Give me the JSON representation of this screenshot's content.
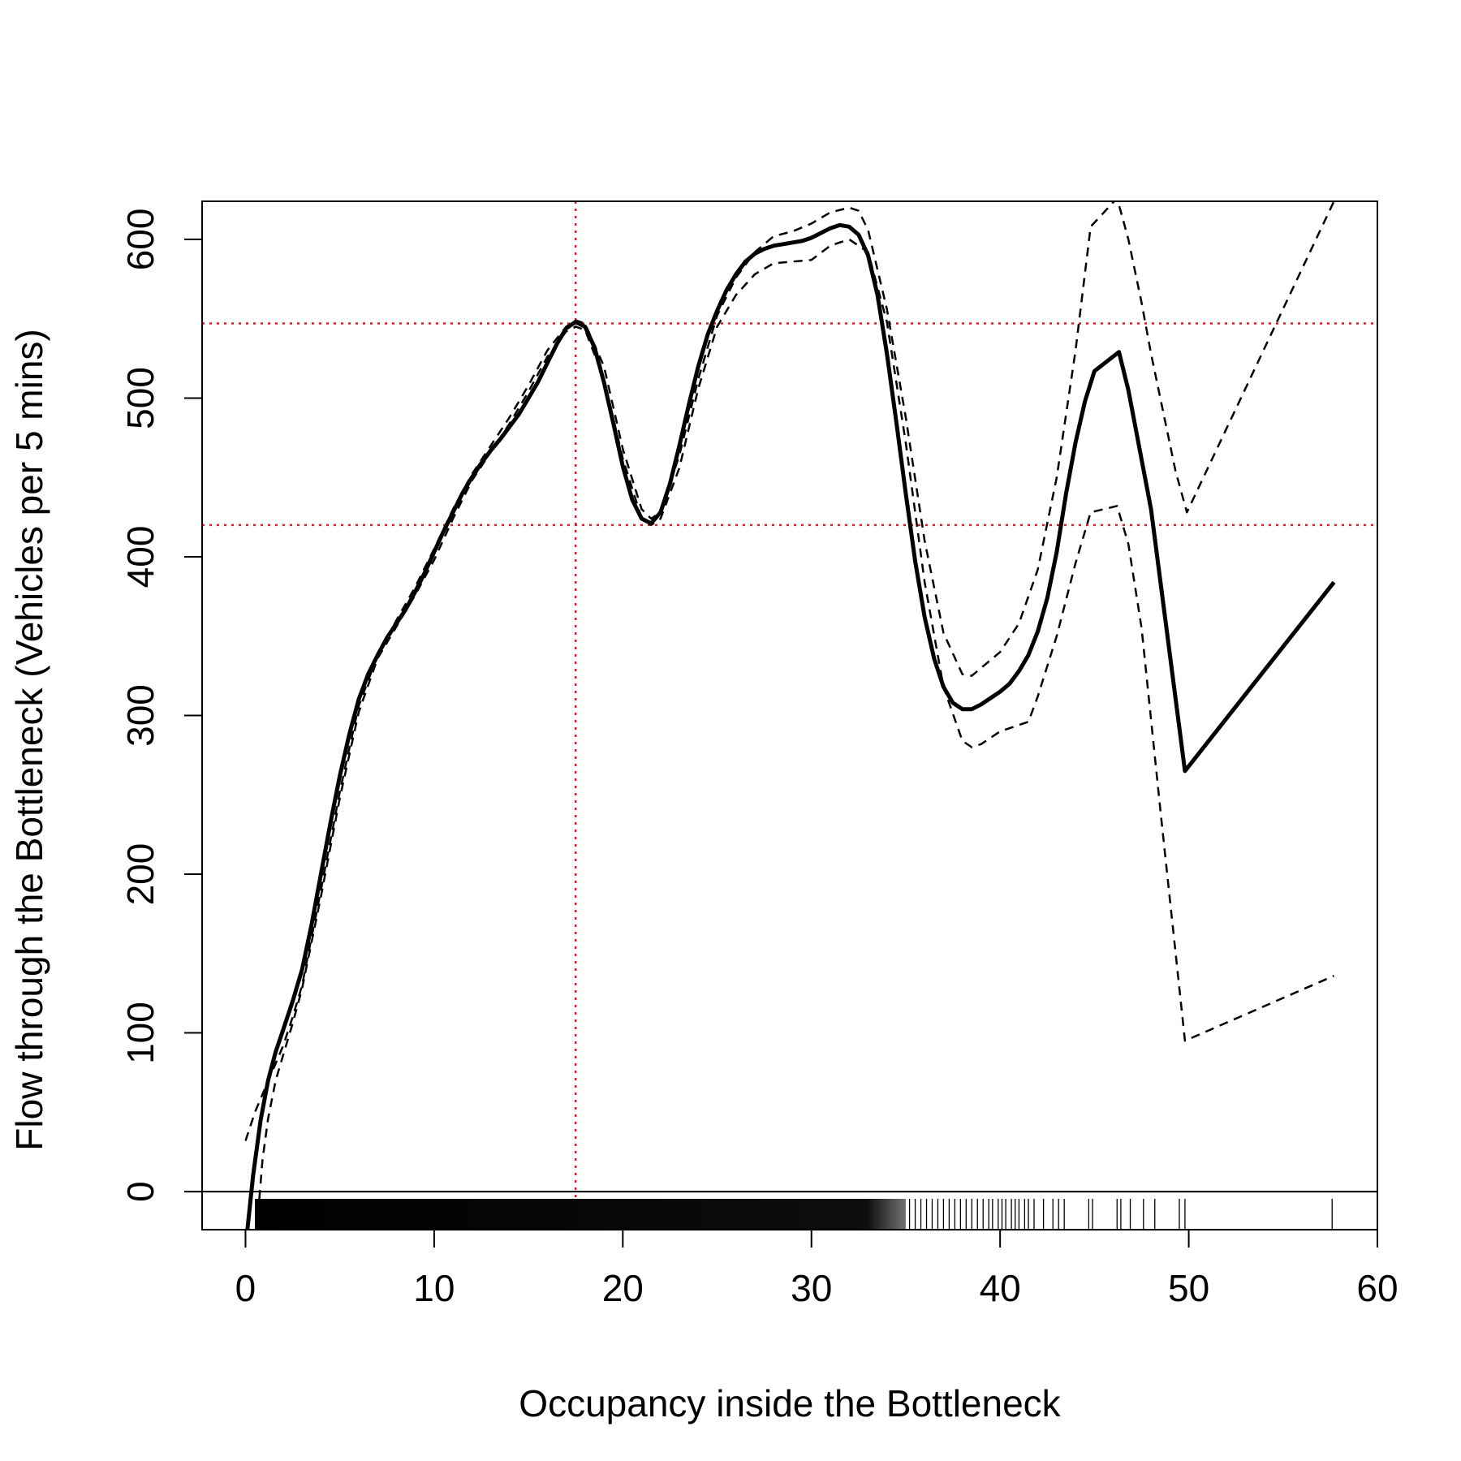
{
  "chart_data": {
    "type": "line",
    "title": "",
    "xlabel": "Occupancy inside the Bottleneck",
    "ylabel": "Flow through the Bottleneck (Vehicles per 5 mins)",
    "xlim": [
      -2.3,
      60
    ],
    "ylim": [
      -24,
      624
    ],
    "x_ticks": [
      0,
      10,
      20,
      30,
      40,
      50,
      60
    ],
    "y_ticks": [
      0,
      100,
      200,
      300,
      400,
      500,
      600
    ],
    "grid": false,
    "legend": "none",
    "colors": {
      "fit": "#000000",
      "band": "#000000",
      "reference": "#e41a1c"
    },
    "series": [
      {
        "role": "fit",
        "style": "solid",
        "x": [
          0.1,
          0.4,
          0.8,
          1.2,
          1.6,
          2.0,
          2.5,
          3.0,
          3.5,
          4.0,
          4.5,
          5.0,
          5.5,
          6.0,
          6.5,
          7.0,
          7.5,
          8.0,
          8.5,
          9.0,
          9.5,
          10.0,
          10.5,
          11.0,
          11.5,
          12.0,
          12.5,
          13.0,
          13.5,
          14.0,
          14.5,
          15.0,
          15.5,
          16.0,
          16.5,
          17.0,
          17.5,
          18.0,
          18.5,
          19.0,
          19.5,
          20.0,
          20.5,
          21.0,
          21.5,
          22.0,
          22.5,
          23.0,
          23.5,
          24.0,
          24.5,
          25.0,
          25.5,
          26.0,
          26.5,
          27.0,
          27.5,
          28.0,
          28.5,
          29.0,
          29.5,
          30.0,
          30.5,
          31.0,
          31.5,
          32.0,
          32.5,
          33.0,
          33.5,
          34.0,
          34.5,
          35.0,
          35.5,
          36.0,
          36.5,
          37.0,
          37.5,
          38.0,
          38.5,
          39.0,
          39.5,
          40.0,
          40.5,
          41.0,
          41.5,
          42.0,
          42.5,
          43.0,
          43.5,
          44.0,
          44.5,
          45.0,
          46.3,
          46.8,
          48.0,
          49.8,
          57.7
        ],
        "y": [
          -24,
          10,
          45,
          70,
          88,
          102,
          120,
          140,
          168,
          200,
          232,
          262,
          288,
          310,
          326,
          338,
          349,
          358,
          367,
          378,
          390,
          403,
          416,
          428,
          440,
          450,
          459,
          467,
          474,
          482,
          490,
          500,
          510,
          522,
          534,
          544,
          548,
          545,
          532,
          510,
          484,
          457,
          436,
          424,
          421,
          428,
          446,
          470,
          496,
          520,
          540,
          555,
          568,
          578,
          586,
          591,
          594,
          596,
          597,
          598,
          599,
          601,
          604,
          607,
          609,
          608,
          603,
          590,
          565,
          528,
          485,
          440,
          397,
          362,
          336,
          318,
          308,
          304,
          304,
          307,
          311,
          315,
          320,
          328,
          338,
          353,
          374,
          403,
          440,
          472,
          498,
          517,
          529,
          505,
          430,
          265,
          384
        ]
      },
      {
        "role": "upper-band",
        "style": "dashed",
        "x": [
          0.0,
          0.5,
          1.0,
          1.5,
          2.0,
          2.5,
          3.0,
          4.0,
          5.0,
          6.0,
          7.0,
          8.0,
          9.0,
          10.0,
          11.0,
          12.0,
          13.0,
          14.0,
          15.0,
          16.0,
          17.0,
          17.5,
          18.0,
          19.0,
          20.0,
          21.0,
          21.5,
          22.0,
          23.0,
          24.0,
          25.0,
          26.0,
          27.0,
          28.0,
          29.0,
          30.0,
          31.0,
          32.0,
          32.5,
          33.0,
          34.0,
          35.0,
          36.0,
          37.0,
          38.0,
          38.5,
          39.0,
          40.0,
          41.0,
          42.0,
          43.0,
          44.0,
          44.8,
          46.2,
          46.8,
          47.5,
          48.0,
          49.3,
          49.9,
          57.7
        ],
        "y": [
          32,
          50,
          64,
          78,
          92,
          110,
          130,
          190,
          252,
          306,
          338,
          360,
          381,
          405,
          430,
          452,
          470,
          488,
          508,
          530,
          545,
          549,
          547,
          520,
          468,
          430,
          424,
          428,
          464,
          512,
          552,
          576,
          592,
          602,
          605,
          610,
          617,
          620,
          618,
          606,
          556,
          488,
          410,
          352,
          326,
          325,
          330,
          340,
          358,
          392,
          450,
          530,
          608,
          626,
          600,
          560,
          528,
          454,
          428,
          624
        ]
      },
      {
        "role": "lower-band",
        "style": "dashed",
        "x": [
          0.6,
          0.9,
          1.2,
          1.6,
          2.0,
          2.5,
          3.0,
          4.0,
          5.0,
          6.0,
          7.0,
          8.0,
          9.0,
          10.0,
          11.0,
          12.0,
          13.0,
          14.0,
          15.0,
          16.0,
          17.0,
          17.5,
          18.0,
          19.0,
          20.0,
          21.0,
          21.5,
          22.0,
          23.0,
          24.0,
          25.0,
          26.0,
          27.0,
          28.0,
          29.0,
          30.0,
          31.0,
          32.0,
          33.0,
          34.0,
          35.0,
          36.0,
          37.0,
          38.0,
          38.5,
          39.0,
          40.0,
          41.0,
          41.5,
          42.0,
          43.0,
          44.0,
          44.8,
          46.2,
          46.8,
          47.5,
          48.5,
          49.8,
          57.7
        ],
        "y": [
          -24,
          20,
          46,
          70,
          86,
          106,
          128,
          186,
          248,
          302,
          336,
          356,
          376,
          398,
          424,
          448,
          466,
          484,
          504,
          526,
          542,
          545,
          543,
          512,
          462,
          424,
          420,
          424,
          456,
          506,
          545,
          565,
          578,
          585,
          586,
          587,
          596,
          600,
          592,
          548,
          472,
          384,
          318,
          284,
          280,
          282,
          290,
          294,
          296,
          312,
          350,
          396,
          428,
          432,
          408,
          355,
          240,
          95,
          136
        ]
      }
    ],
    "reference_lines": {
      "vertical_x": [
        17.5
      ],
      "horizontal_y": [
        547,
        420
      ]
    },
    "rug": {
      "dense_range": [
        0.5,
        35
      ],
      "ticks": [
        35.2,
        35.5,
        35.8,
        36.1,
        36.4,
        36.7,
        37.0,
        37.3,
        37.6,
        37.9,
        38.2,
        38.5,
        38.8,
        39.1,
        39.4,
        39.6,
        39.9,
        40.1,
        40.3,
        40.6,
        40.8,
        41.0,
        41.3,
        41.5,
        41.8,
        42.3,
        42.8,
        43.1,
        43.4,
        44.7,
        44.9,
        46.2,
        46.4,
        46.9,
        47.6,
        48.2,
        49.5,
        49.8,
        57.6
      ]
    }
  }
}
